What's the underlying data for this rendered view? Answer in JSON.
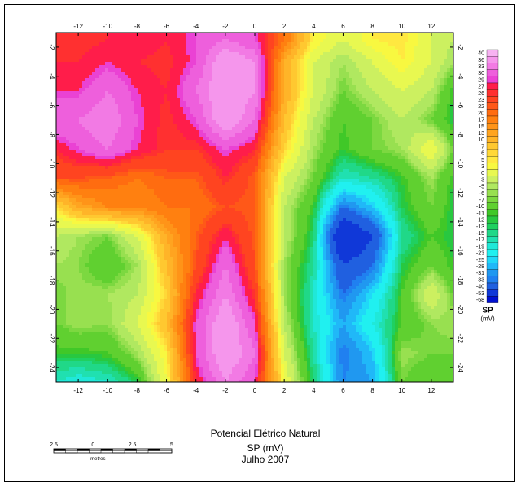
{
  "chart_data": {
    "type": "heatmap",
    "title": "Potencial Elétrico Natural",
    "subtitle": "SP (mV)",
    "date_label": "Julho 2007",
    "x_ticks": [
      -12,
      -10,
      -8,
      -6,
      -4,
      -2,
      0,
      2,
      4,
      6,
      8,
      10,
      12
    ],
    "y_ticks": [
      -2,
      -4,
      -6,
      -8,
      -10,
      -12,
      -14,
      -16,
      -18,
      -20,
      -22,
      -24
    ],
    "xlim": [
      -13.5,
      13.5
    ],
    "ylim": [
      -25,
      -1
    ],
    "grid": false,
    "colorbar": {
      "title": "SP",
      "unit": "(mV)",
      "position": "right",
      "levels": [
        40,
        36,
        33,
        30,
        29,
        27,
        26,
        23,
        22,
        20,
        17,
        15,
        13,
        10,
        7,
        6,
        5,
        3,
        0,
        -3,
        -5,
        -6,
        -7,
        -10,
        -11,
        -12,
        -13,
        -15,
        -17,
        -19,
        -23,
        -25,
        -28,
        -31,
        -33,
        -40,
        -53,
        -68
      ],
      "colors": [
        "#f7b2f2",
        "#f596ec",
        "#f27ae4",
        "#ee5fdc",
        "#ea42d4",
        "#ff1d4a",
        "#ff3030",
        "#ff4420",
        "#ff5818",
        "#ff6c10",
        "#ff8010",
        "#ff9418",
        "#ffa420",
        "#ffb428",
        "#ffc830",
        "#ffd838",
        "#ffe840",
        "#f8f840",
        "#e8f850",
        "#ccf060",
        "#b0e860",
        "#98e050",
        "#7cd840",
        "#60d030",
        "#40c828",
        "#28c840",
        "#20d060",
        "#20d888",
        "#20e0b0",
        "#20e8d8",
        "#20f0f0",
        "#20d8f8",
        "#20b8f8",
        "#2098f0",
        "#2080f0",
        "#2060e0",
        "#1038d8",
        "#0010d0"
      ]
    },
    "x_cols": [
      -13.5,
      -12,
      -10,
      -8,
      -6,
      -4,
      -2,
      0,
      2,
      4,
      6,
      8,
      10,
      12,
      13.5
    ],
    "y_rows": [
      -1.5,
      -3,
      -5,
      -7,
      -9,
      -11,
      -13,
      -15,
      -17,
      -19,
      -21,
      -23,
      -25
    ],
    "z": [
      [
        26,
        26,
        27,
        29,
        27,
        30,
        33,
        30,
        20,
        5,
        0,
        5,
        6,
        0,
        -3
      ],
      [
        27,
        27,
        29,
        27,
        26,
        30,
        40,
        36,
        13,
        0,
        -5,
        0,
        5,
        0,
        -5
      ],
      [
        29,
        29,
        33,
        29,
        27,
        33,
        40,
        36,
        13,
        0,
        -7,
        -3,
        0,
        -3,
        -11
      ],
      [
        33,
        33,
        36,
        30,
        26,
        30,
        40,
        33,
        10,
        -3,
        -10,
        -7,
        -3,
        -7,
        -12
      ],
      [
        27,
        30,
        33,
        29,
        26,
        26,
        30,
        27,
        7,
        -5,
        -11,
        -7,
        -5,
        3,
        -7
      ],
      [
        23,
        23,
        22,
        20,
        22,
        22,
        27,
        22,
        0,
        -7,
        -17,
        -15,
        -11,
        -5,
        -11
      ],
      [
        6,
        13,
        17,
        17,
        20,
        20,
        23,
        22,
        -3,
        -11,
        -33,
        -25,
        -12,
        -7,
        -12
      ],
      [
        -3,
        -5,
        -7,
        0,
        13,
        22,
        29,
        22,
        -3,
        -13,
        -53,
        -40,
        -15,
        -10,
        -12
      ],
      [
        -5,
        -6,
        -10,
        -5,
        10,
        23,
        33,
        23,
        -5,
        -15,
        -40,
        -33,
        -12,
        -7,
        -11
      ],
      [
        -7,
        -5,
        -5,
        -3,
        7,
        27,
        36,
        26,
        -5,
        -17,
        -33,
        -23,
        -10,
        0,
        -7
      ],
      [
        -7,
        -5,
        -6,
        0,
        10,
        30,
        40,
        30,
        -3,
        -17,
        -28,
        -19,
        -10,
        -6,
        -5
      ],
      [
        -11,
        -11,
        -10,
        -5,
        5,
        30,
        40,
        33,
        0,
        -15,
        -33,
        -25,
        -5,
        -7,
        -7
      ],
      [
        -17,
        -19,
        -17,
        -12,
        3,
        27,
        36,
        30,
        3,
        -13,
        -31,
        -28,
        -7,
        -10,
        -7
      ]
    ]
  },
  "scale_bar": {
    "labels": [
      "2.5",
      "0",
      "2.5",
      "5"
    ],
    "unit": "metres"
  }
}
